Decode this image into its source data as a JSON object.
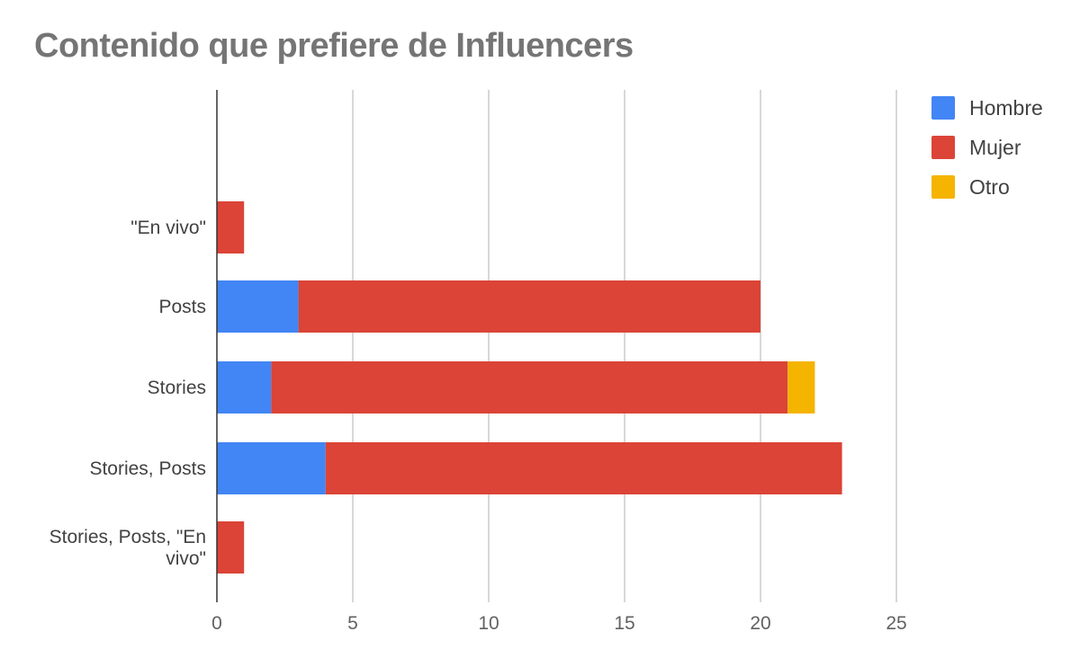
{
  "chart_data": {
    "type": "bar",
    "orientation": "horizontal",
    "stacked": true,
    "title": "Contenido que prefiere de Influencers",
    "categories": [
      "\"En vivo\"",
      "Posts",
      "Stories",
      "Stories, Posts",
      "Stories, Posts, \"En vivo\""
    ],
    "category_display": [
      [
        "\"En vivo\""
      ],
      [
        "Posts"
      ],
      [
        "Stories"
      ],
      [
        "Stories, Posts"
      ],
      [
        "Stories, Posts, \"En",
        "vivo\""
      ]
    ],
    "series": [
      {
        "name": "Hombre",
        "color": "#4285f4",
        "values": [
          0,
          3,
          2,
          4,
          0
        ]
      },
      {
        "name": "Mujer",
        "color": "#db4437",
        "values": [
          1,
          17,
          19,
          19,
          1
        ]
      },
      {
        "name": "Otro",
        "color": "#f4b400",
        "values": [
          0,
          0,
          1,
          0,
          0
        ]
      }
    ],
    "xlim": [
      0,
      25
    ],
    "xticks": [
      "0",
      "5",
      "10",
      "15",
      "20",
      "25"
    ],
    "grid": true,
    "legend_position": "right"
  }
}
